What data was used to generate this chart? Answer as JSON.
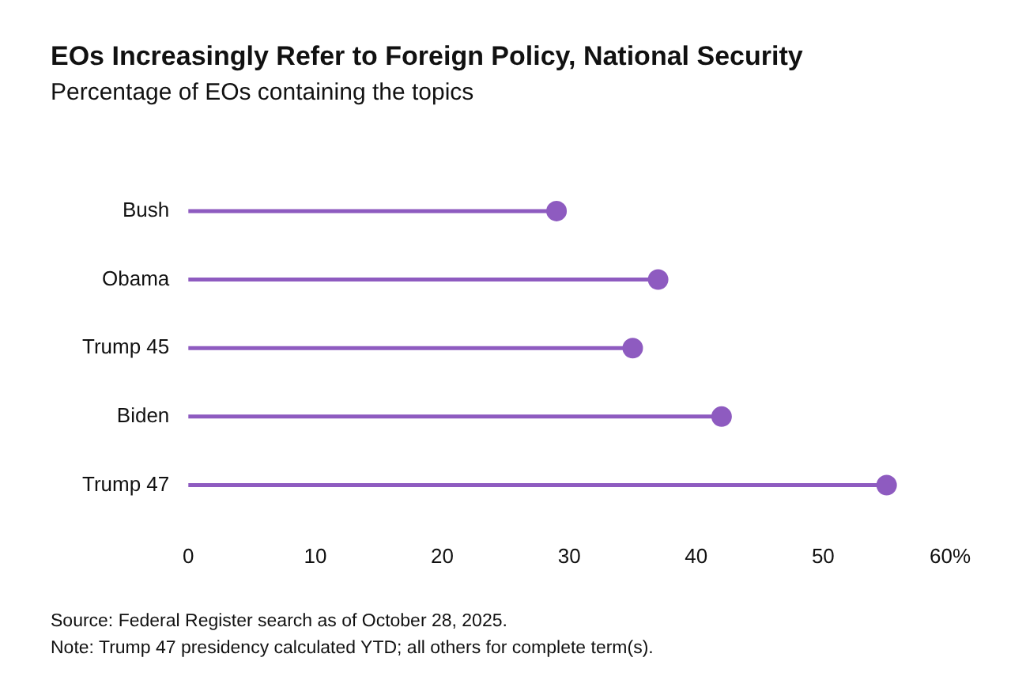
{
  "chart_data": {
    "type": "lollipop",
    "orientation": "horizontal",
    "title": "EOs Increasingly Refer to Foreign Policy, National Security",
    "subtitle": "Percentage of EOs containing the topics",
    "categories": [
      "Bush",
      "Obama",
      "Trump 45",
      "Biden",
      "Trump 47"
    ],
    "values": [
      29,
      37,
      35,
      42,
      55
    ],
    "color": "#8e5bc0",
    "xlim": [
      0,
      60
    ],
    "xticks": [
      0,
      10,
      20,
      30,
      40,
      50,
      {
        "value": 60,
        "label": "60%"
      }
    ],
    "grid": false,
    "legend": false,
    "marker": "circle",
    "annotations": [
      "Source: Federal Register search as of October 28, 2025.",
      "Note: Trump 47 presidency calculated YTD; all others for complete term(s)."
    ]
  }
}
